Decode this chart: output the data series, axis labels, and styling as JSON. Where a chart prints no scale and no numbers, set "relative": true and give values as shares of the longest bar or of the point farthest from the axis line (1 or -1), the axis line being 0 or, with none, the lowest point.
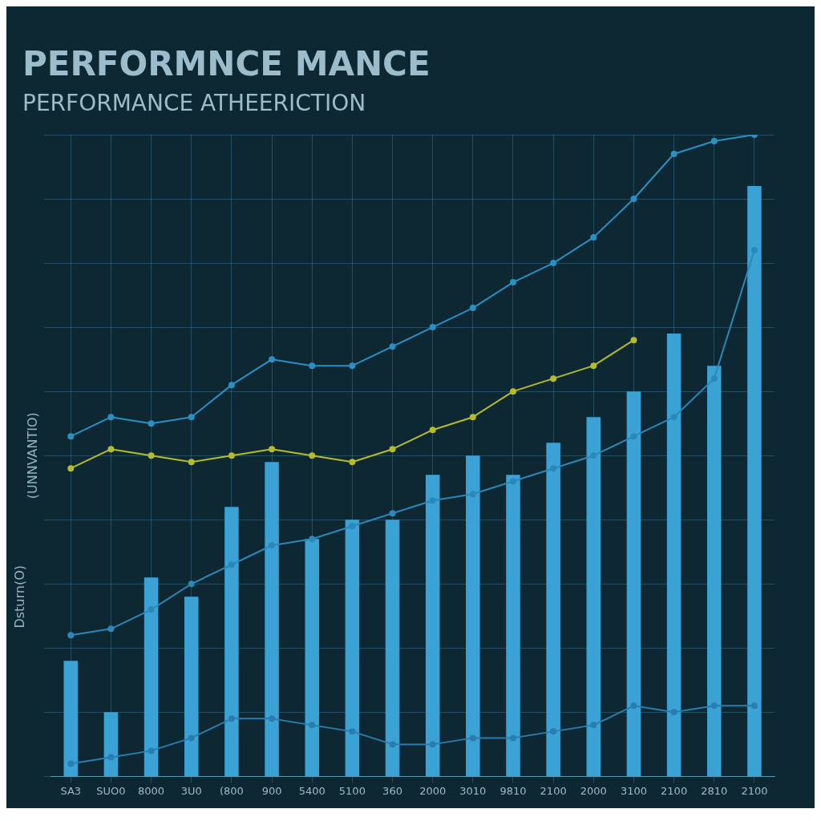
{
  "chart_data": {
    "type": "bar",
    "title": "PERFORMNCE MANCE",
    "subtitle": "PERFORMANCE ATHEERICTION",
    "ylabel": "(UNNVANTIO)",
    "annotations": [
      "Dsturn(O)"
    ],
    "categories": [
      "SA3",
      "SUO0",
      "8000",
      "3U0",
      "(800",
      "900",
      "5400",
      "5100",
      "360",
      "2000",
      "3010",
      "9810",
      "2100",
      "2000",
      "3100",
      "2100",
      "2810",
      "2100"
    ],
    "relative": true,
    "grid": true,
    "legend": false,
    "marker": "circle",
    "series": [
      {
        "color": "#3aa2d4",
        "values": [
          0.18,
          0.1,
          0.31,
          0.28,
          0.42,
          0.49,
          0.37,
          0.4,
          0.4,
          0.47,
          0.5,
          0.47,
          0.52,
          0.56,
          0.6,
          0.69,
          0.64,
          0.92
        ]
      },
      {
        "type": "line",
        "color": "#2a90c4",
        "values": [
          0.53,
          0.56,
          0.55,
          0.56,
          0.61,
          0.65,
          0.64,
          0.64,
          0.67,
          0.7,
          0.73,
          0.77,
          0.8,
          0.84,
          0.9,
          0.97,
          0.99,
          1.0
        ]
      },
      {
        "type": "line",
        "color": "#b4bc2c",
        "values": [
          0.48,
          0.51,
          0.5,
          0.49,
          0.5,
          0.51,
          0.5,
          0.49,
          0.51,
          0.54,
          0.56,
          0.6,
          0.62,
          0.64,
          0.68,
          null,
          null,
          null
        ]
      },
      {
        "type": "line",
        "color": "#2c88b8",
        "values": [
          0.22,
          0.23,
          0.26,
          0.3,
          0.33,
          0.36,
          0.37,
          0.39,
          0.41,
          0.43,
          0.44,
          0.46,
          0.48,
          0.5,
          0.53,
          0.56,
          0.62,
          0.82
        ]
      },
      {
        "type": "line",
        "color": "#2a7eae",
        "values": [
          0.02,
          0.03,
          0.04,
          0.06,
          0.09,
          0.09,
          0.08,
          0.07,
          0.05,
          0.05,
          0.06,
          0.06,
          0.07,
          0.08,
          0.11,
          0.1,
          0.11,
          0.11
        ]
      }
    ]
  }
}
